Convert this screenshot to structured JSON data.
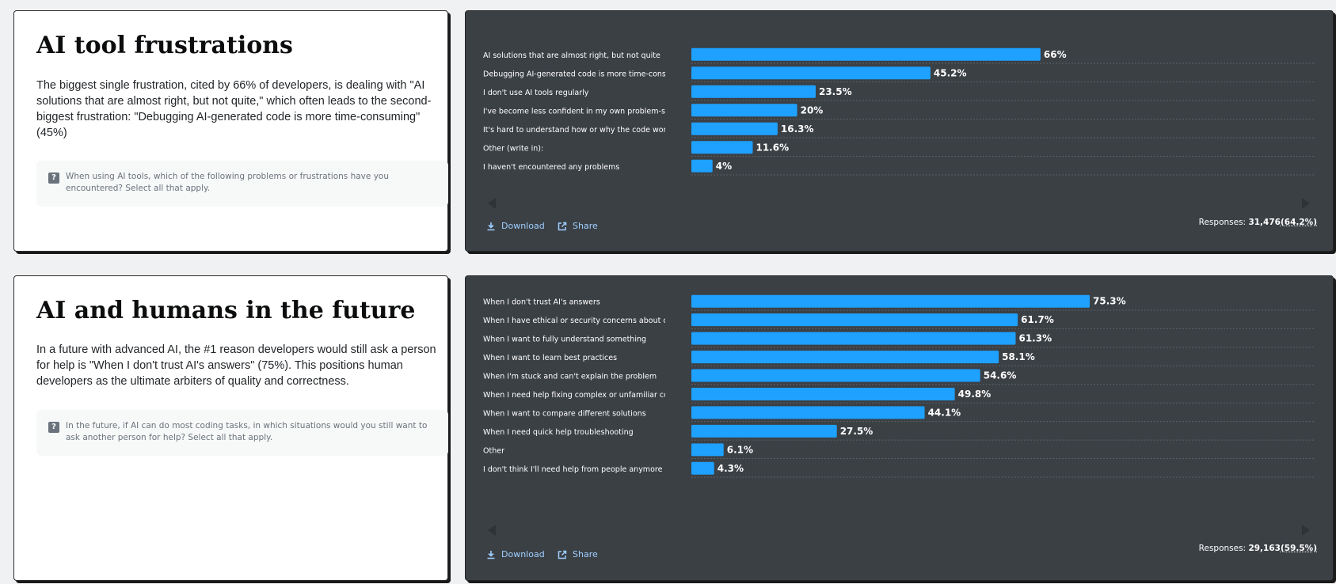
{
  "sections": [
    {
      "title": "AI tool frustrations",
      "description": "The biggest single frustration, cited by 66% of developers, is dealing with \"AI solutions that are almost right, but not quite,\" which often leads to the second-biggest frustration: \"Debugging AI-generated code is more time-consuming\" (45%)",
      "question": "When using AI tools, which of the following problems or frustrations have you encountered? Select all that apply.",
      "download_label": "Download",
      "share_label": "Share",
      "responses_label": "Responses:",
      "responses_count": "31,476",
      "responses_pct": "(64.2%)"
    },
    {
      "title": "AI and humans in the future",
      "description": "In a future with advanced AI, the #1 reason developers would still ask a person for help is \"When I don't trust AI's answers\" (75%). This positions human developers as the ultimate arbiters of quality and correctness.",
      "question": "In the future, if AI can do most coding tasks, in which situations would you still want to ask another person for help? Select all that apply.",
      "download_label": "Download",
      "share_label": "Share",
      "responses_label": "Responses:",
      "responses_count": "29,163",
      "responses_pct": "(59.5%)"
    }
  ],
  "colors": {
    "bar": "#1ea1ff",
    "panel": "#3b4045",
    "label": "#ffffff",
    "link": "#9fcfff"
  },
  "icons": {
    "question": "question-mark-icon",
    "download": "download-icon",
    "share": "share-icon",
    "prev": "chevron-left-icon",
    "next": "chevron-right-icon"
  },
  "chart_data": [
    {
      "type": "bar",
      "orientation": "horizontal",
      "categories": [
        "AI solutions that are almost right, but not quite",
        "Debugging AI-generated code is more time-consuming",
        "I don't use AI tools regularly",
        "I've become less confident in my own problem-solving",
        "It's hard to understand how or why the code works",
        "Other (write in):",
        "I haven't encountered any problems"
      ],
      "values": [
        66,
        45.2,
        23.5,
        20,
        16.3,
        11.6,
        4
      ],
      "value_labels": [
        "66%",
        "45.2%",
        "23.5%",
        "20%",
        "16.3%",
        "11.6%",
        "4%"
      ],
      "xlim": [
        0,
        100
      ],
      "grid": false
    },
    {
      "type": "bar",
      "orientation": "horizontal",
      "categories": [
        "When I don't trust AI's answers",
        "When I have ethical or security concerns about code",
        "When I want to fully understand something",
        "When I want to learn best practices",
        "When I'm stuck and can't explain the problem",
        "When I need help fixing complex or unfamiliar code",
        "When I want to compare different solutions",
        "When I need quick help troubleshooting",
        "Other",
        "I don't think I'll need help from people anymore"
      ],
      "values": [
        75.3,
        61.7,
        61.3,
        58.1,
        54.6,
        49.8,
        44.1,
        27.5,
        6.1,
        4.3
      ],
      "value_labels": [
        "75.3%",
        "61.7%",
        "61.3%",
        "58.1%",
        "54.6%",
        "49.8%",
        "44.1%",
        "27.5%",
        "6.1%",
        "4.3%"
      ],
      "xlim": [
        0,
        100
      ],
      "grid": false
    }
  ]
}
